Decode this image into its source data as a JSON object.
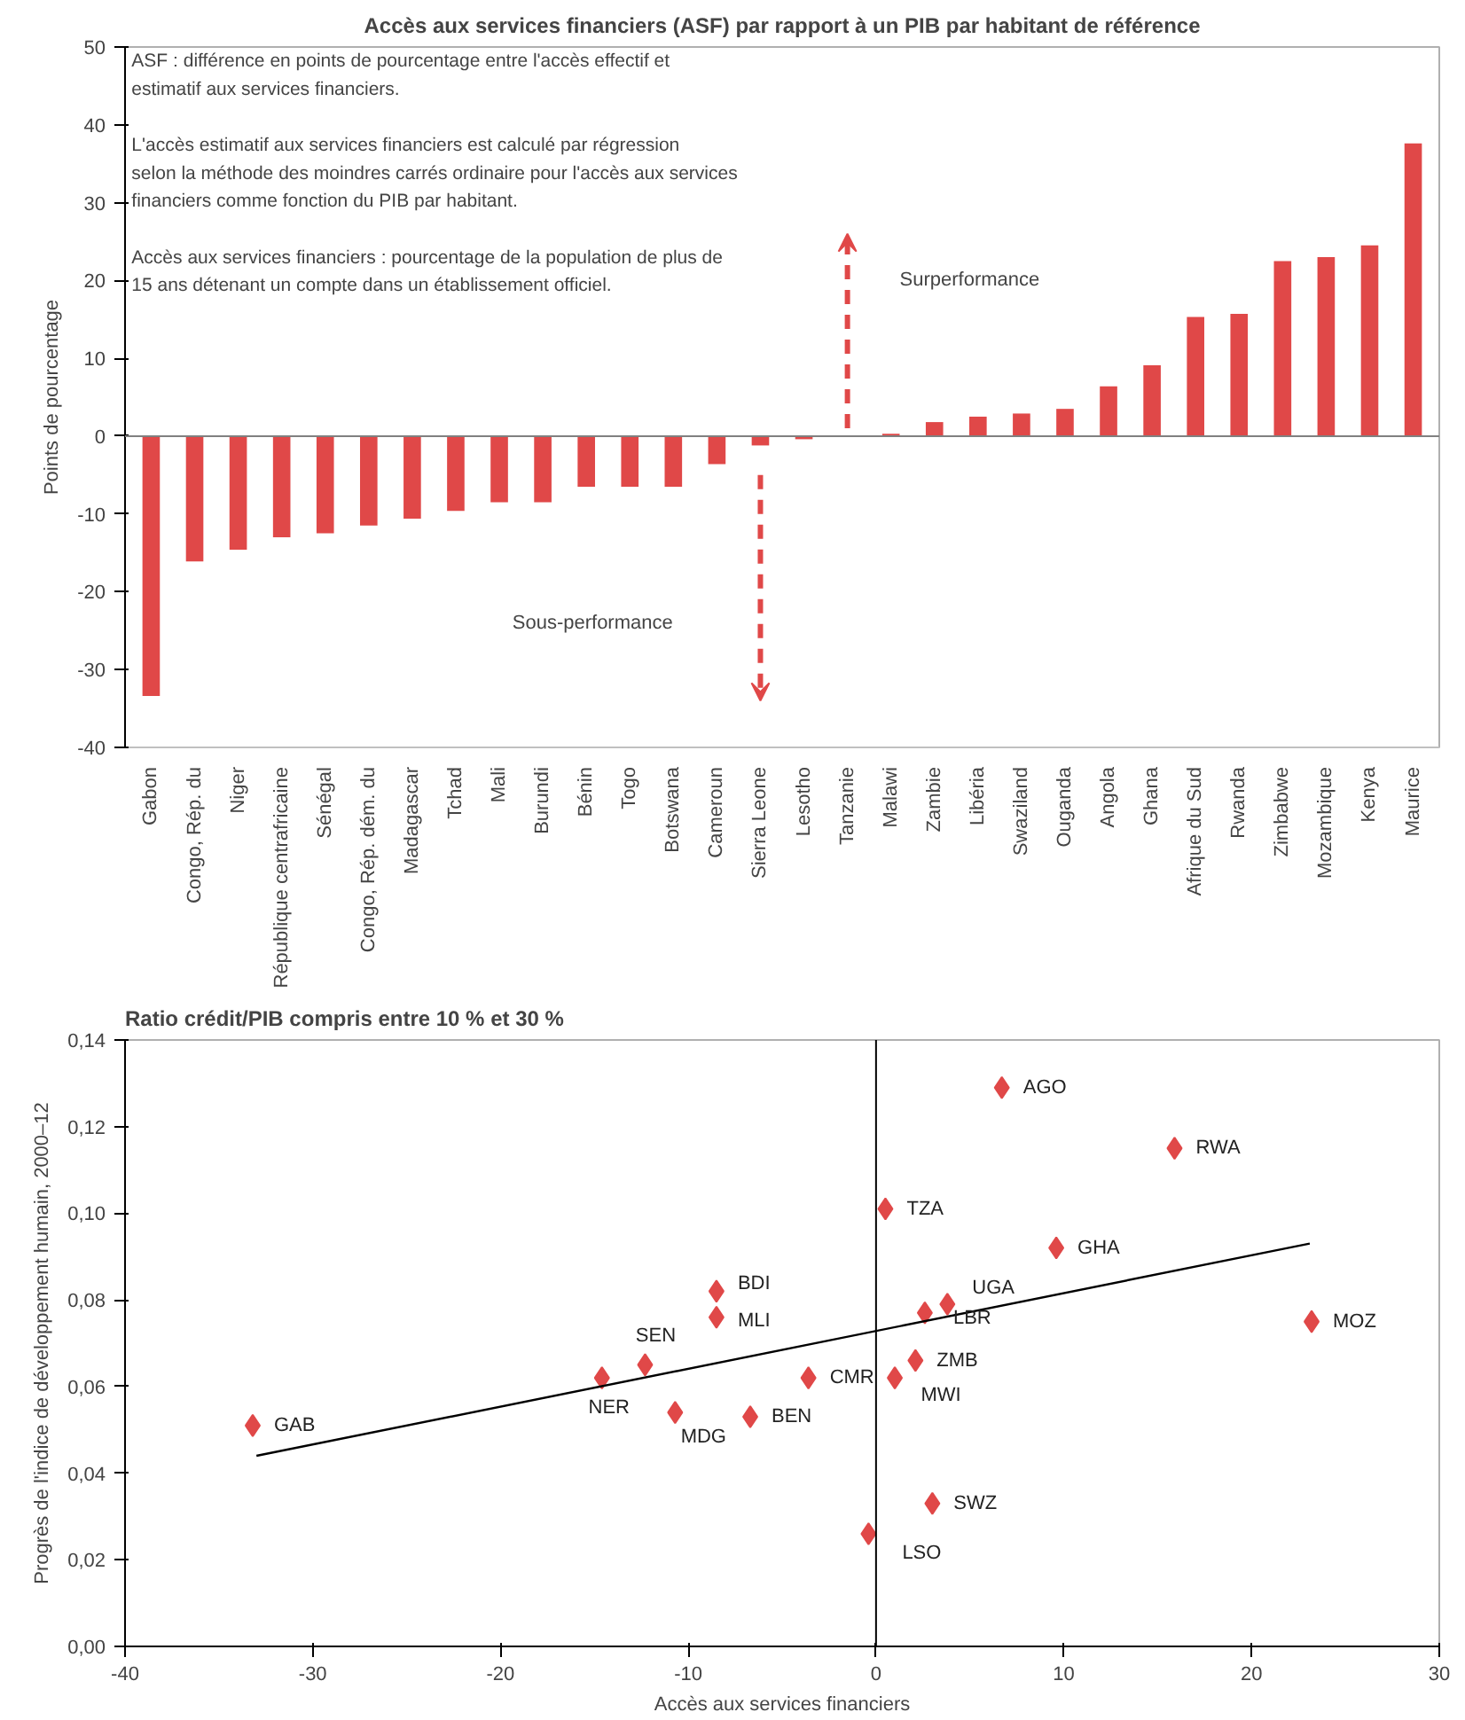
{
  "chart_data": [
    {
      "type": "bar",
      "title": "Accès aux services financiers (ASF) par rapport à un PIB par habitant de référence",
      "ylabel": "Points de pourcentage",
      "categories": [
        "Gabon",
        "Congo, Rép. du",
        "Niger",
        "République centrafricaine",
        "Sénégal",
        "Congo, Rép. dém. du",
        "Madagascar",
        "Tchad",
        "Mali",
        "Burundi",
        "Bénin",
        "Togo",
        "Botswana",
        "Cameroun",
        "Sierra Leone",
        "Lesotho",
        "Tanzanie",
        "Malawi",
        "Zambie",
        "Libéria",
        "Swaziland",
        "Ouganda",
        "Angola",
        "Ghana",
        "Afrique du Sud",
        "Rwanda",
        "Zimbabwe",
        "Mozambique",
        "Kenya",
        "Maurice"
      ],
      "series": [
        {
          "color": "#e04848",
          "values": [
            -33.4,
            -16.1,
            -14.6,
            -13,
            -12.5,
            -11.5,
            -10.6,
            -9.6,
            -8.5,
            -8.5,
            -6.5,
            -6.5,
            -6.5,
            -3.6,
            -1.2,
            -0.4,
            null,
            0.3,
            1.8,
            2.5,
            2.9,
            3.5,
            6.4,
            9.1,
            15.3,
            15.7,
            22.5,
            23,
            24.5,
            37.6
          ]
        }
      ],
      "ylim": [
        -40,
        50
      ],
      "yticks": [
        -40,
        -30,
        -20,
        -10,
        0,
        10,
        20,
        30,
        40,
        50
      ],
      "grid": false,
      "ref_lines": [
        {
          "axis": "y",
          "value": 0,
          "color": "#808080"
        }
      ],
      "annotations": [
        "ASF : différence en points de pourcentage entre l'accès effectif et estimatif aux services financiers.",
        "L'accès estimatif aux services financiers est calculé par régression selon la méthode des moindres carrés ordinaire pour l'accès aux services financiers comme fonction du PIB par habitant.",
        "Accès aux services financiers : pourcentage de la population de plus de 15 ans détenant un compte dans un établissement officiel.",
        "Surperformance",
        "Sous-performance"
      ]
    },
    {
      "type": "scatter",
      "title": "Ratio crédit/PIB compris entre 10 % et 30 %",
      "xlabel": "Accès aux services financiers",
      "ylabel": "Progrès de l'indice de développement humain, 2000–12",
      "grid": false,
      "series": [
        {
          "type": "scatter",
          "marker": "diamond",
          "color": "#e04848",
          "x": [
            -33.2,
            -14.6,
            -12.3,
            -10.7,
            -8.5,
            -8.5,
            -6.7,
            -3.6,
            -0.4,
            0.5,
            1.0,
            2.1,
            2.6,
            3.8,
            3.0,
            6.7,
            9.6,
            15.9,
            23.2
          ],
          "values": [
            0.051,
            0.062,
            0.065,
            0.054,
            0.082,
            0.076,
            0.053,
            0.062,
            0.026,
            0.101,
            0.062,
            0.066,
            0.077,
            0.079,
            0.033,
            0.129,
            0.092,
            0.115,
            0.075
          ]
        },
        {
          "type": "line",
          "marker": "none",
          "color": "#000000",
          "x": [
            -33,
            23.1
          ],
          "values": [
            0.044,
            0.093
          ]
        }
      ],
      "xlim": [
        -40,
        30
      ],
      "xticks": [
        -40,
        -30,
        -20,
        -10,
        0,
        10,
        20,
        30
      ],
      "ylim": [
        0,
        0.14
      ],
      "yticks": [
        {
          "value": 0,
          "label": "0,00"
        },
        {
          "value": 0.02,
          "label": "0,02"
        },
        {
          "value": 0.04,
          "label": "0,04"
        },
        {
          "value": 0.06,
          "label": "0,06"
        },
        {
          "value": 0.08,
          "label": "0,08"
        },
        {
          "value": 0.1,
          "label": "0,10"
        },
        {
          "value": 0.12,
          "label": "0,12"
        },
        {
          "value": 0.14,
          "label": "0,14"
        }
      ],
      "ref_lines": [
        {
          "axis": "x",
          "value": 0,
          "color": "#000000"
        }
      ],
      "annotations": [
        {
          "text": "GAB",
          "x": -33.2,
          "y": 0.051
        },
        {
          "text": "NER",
          "x": -14.6,
          "y": 0.062
        },
        {
          "text": "SEN",
          "x": -12.3,
          "y": 0.065
        },
        {
          "text": "MDG",
          "x": -10.7,
          "y": 0.054
        },
        {
          "text": "BDI",
          "x": -8.5,
          "y": 0.082
        },
        {
          "text": "MLI",
          "x": -8.5,
          "y": 0.076
        },
        {
          "text": "BEN",
          "x": -6.7,
          "y": 0.053
        },
        {
          "text": "CMR",
          "x": -3.6,
          "y": 0.062
        },
        {
          "text": "LSO",
          "x": -0.4,
          "y": 0.026
        },
        {
          "text": "TZA",
          "x": 0.5,
          "y": 0.101
        },
        {
          "text": "MWI",
          "x": 1.0,
          "y": 0.062
        },
        {
          "text": "ZMB",
          "x": 2.1,
          "y": 0.066
        },
        {
          "text": "LBR",
          "x": 2.6,
          "y": 0.077
        },
        {
          "text": "UGA",
          "x": 3.8,
          "y": 0.079
        },
        {
          "text": "SWZ",
          "x": 3.0,
          "y": 0.033
        },
        {
          "text": "AGO",
          "x": 6.7,
          "y": 0.129
        },
        {
          "text": "GHA",
          "x": 9.6,
          "y": 0.092
        },
        {
          "text": "RWA",
          "x": 15.9,
          "y": 0.115
        },
        {
          "text": "MOZ",
          "x": 23.2,
          "y": 0.075
        }
      ]
    }
  ]
}
